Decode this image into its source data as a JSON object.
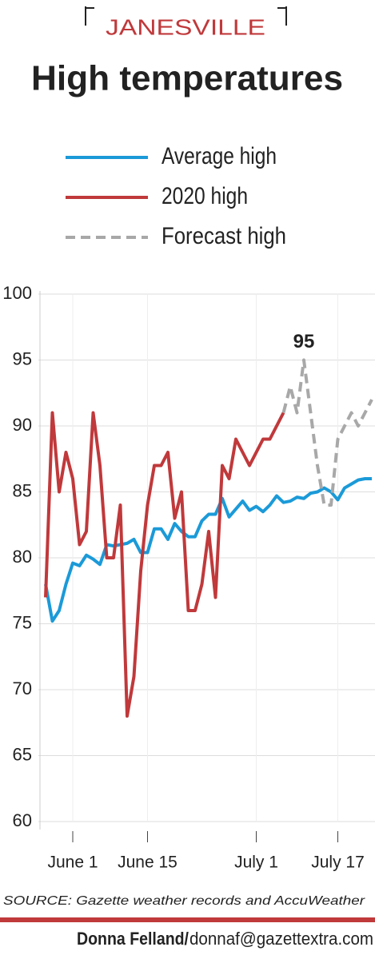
{
  "chart_data": {
    "type": "line",
    "kicker": "JANESVILLE",
    "title": "High temperatures",
    "legend": "top",
    "grid": true,
    "categories": [
      null,
      null,
      null,
      null,
      "June 1",
      null,
      null,
      null,
      null,
      null,
      null,
      null,
      null,
      null,
      null,
      "June 15",
      null,
      null,
      null,
      null,
      null,
      null,
      null,
      null,
      null,
      null,
      null,
      null,
      null,
      null,
      null,
      "July 1",
      null,
      null,
      null,
      null,
      null,
      null,
      null,
      null,
      null,
      null,
      null,
      "July 17",
      null,
      null,
      null,
      null,
      null
    ],
    "ylim": [
      60,
      100
    ],
    "yticks": [
      60,
      65,
      70,
      75,
      80,
      85,
      90,
      95,
      100
    ],
    "series": [
      {
        "name": "Average high",
        "color": "#1b9ad8",
        "dash": false,
        "values": [
          78,
          75.2,
          76,
          78,
          79.6,
          79.4,
          80.2,
          79.9,
          79.5,
          81,
          80.9,
          81,
          81.1,
          81.4,
          80.4,
          80.4,
          82.2,
          82.2,
          81.4,
          82.6,
          82,
          81.6,
          81.6,
          82.8,
          83.3,
          83.3,
          84.5,
          83.1,
          83.7,
          84.3,
          83.6,
          83.9,
          83.5,
          84,
          84.7,
          84.2,
          84.3,
          84.6,
          84.5,
          84.9,
          85,
          85.3,
          85,
          84.4,
          85.3,
          85.6,
          85.9,
          86,
          86
        ]
      },
      {
        "name": "2020 high",
        "color": "#c0393b",
        "dash": false,
        "values": [
          77,
          91,
          85,
          88,
          86,
          81,
          82,
          91,
          87,
          80,
          80,
          84,
          68,
          71,
          79,
          84,
          87,
          87,
          88,
          83,
          85,
          76,
          76,
          78,
          82,
          77,
          87,
          86,
          89,
          88,
          87,
          88,
          89,
          89,
          90,
          91,
          null,
          null,
          null,
          null,
          null,
          null,
          null,
          null,
          null,
          null,
          null,
          null,
          null
        ]
      },
      {
        "name": "Forecast high",
        "color": "#a8a8a8",
        "dash": true,
        "values": [
          null,
          null,
          null,
          null,
          null,
          null,
          null,
          null,
          null,
          null,
          null,
          null,
          null,
          null,
          null,
          null,
          null,
          null,
          null,
          null,
          null,
          null,
          null,
          null,
          null,
          null,
          null,
          null,
          null,
          null,
          null,
          null,
          null,
          null,
          null,
          91,
          93,
          91,
          95,
          91,
          87,
          84,
          84,
          89,
          90,
          91,
          90,
          91,
          92
        ]
      }
    ],
    "annotation": {
      "series": 2,
      "index": 38
    },
    "source": "SOURCE: Gazette weather records and AccuWeather",
    "byline_name": "Donna Felland/",
    "byline_email": "donnaf@gazettextra.com"
  }
}
